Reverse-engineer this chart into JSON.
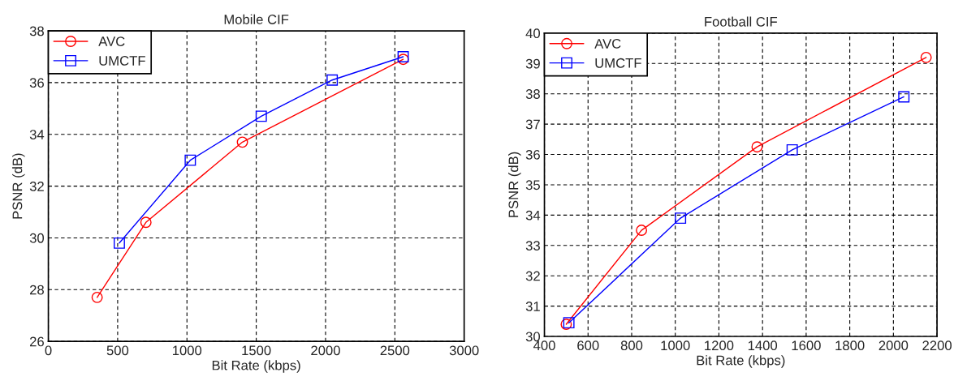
{
  "chart_data": [
    {
      "type": "line",
      "title": "Mobile CIF",
      "xlabel": "Bit Rate (kbps)",
      "ylabel": "PSNR (dB)",
      "xlim": [
        0,
        3000
      ],
      "xticks": [
        0,
        500,
        1000,
        1500,
        2000,
        2500,
        3000
      ],
      "ylim": [
        26,
        38
      ],
      "yticks": [
        26,
        28,
        30,
        32,
        34,
        36,
        38
      ],
      "grid": true,
      "legend": "top left",
      "series": [
        {
          "name": "AVC",
          "color": "#ff0000",
          "marker": "circle",
          "x": [
            352,
            704,
            1400,
            2560
          ],
          "values": [
            27.7,
            30.6,
            33.7,
            36.9
          ]
        },
        {
          "name": "UMCTF",
          "color": "#0000ff",
          "marker": "square",
          "x": [
            512,
            1024,
            1536,
            2048,
            2560
          ],
          "values": [
            29.8,
            33.0,
            34.7,
            36.1,
            37.0
          ]
        }
      ]
    },
    {
      "type": "line",
      "title": "Football CIF",
      "xlabel": "Bit Rate (kbps)",
      "ylabel": "PSNR (dB)",
      "xlim": [
        400,
        2200
      ],
      "xticks": [
        400,
        600,
        800,
        1000,
        1200,
        1400,
        1600,
        1800,
        2000,
        2200
      ],
      "ylim": [
        30,
        40
      ],
      "yticks": [
        30,
        31,
        32,
        33,
        34,
        35,
        36,
        37,
        38,
        39,
        40
      ],
      "grid": true,
      "legend": "top left",
      "series": [
        {
          "name": "AVC",
          "color": "#ff0000",
          "marker": "circle",
          "x": [
            500,
            845,
            1375,
            2150
          ],
          "values": [
            30.4,
            33.5,
            36.25,
            39.2
          ]
        },
        {
          "name": "UMCTF",
          "color": "#0000ff",
          "marker": "square",
          "x": [
            512,
            1024,
            1536,
            2048
          ],
          "values": [
            30.45,
            33.9,
            36.15,
            37.9
          ]
        }
      ]
    }
  ]
}
